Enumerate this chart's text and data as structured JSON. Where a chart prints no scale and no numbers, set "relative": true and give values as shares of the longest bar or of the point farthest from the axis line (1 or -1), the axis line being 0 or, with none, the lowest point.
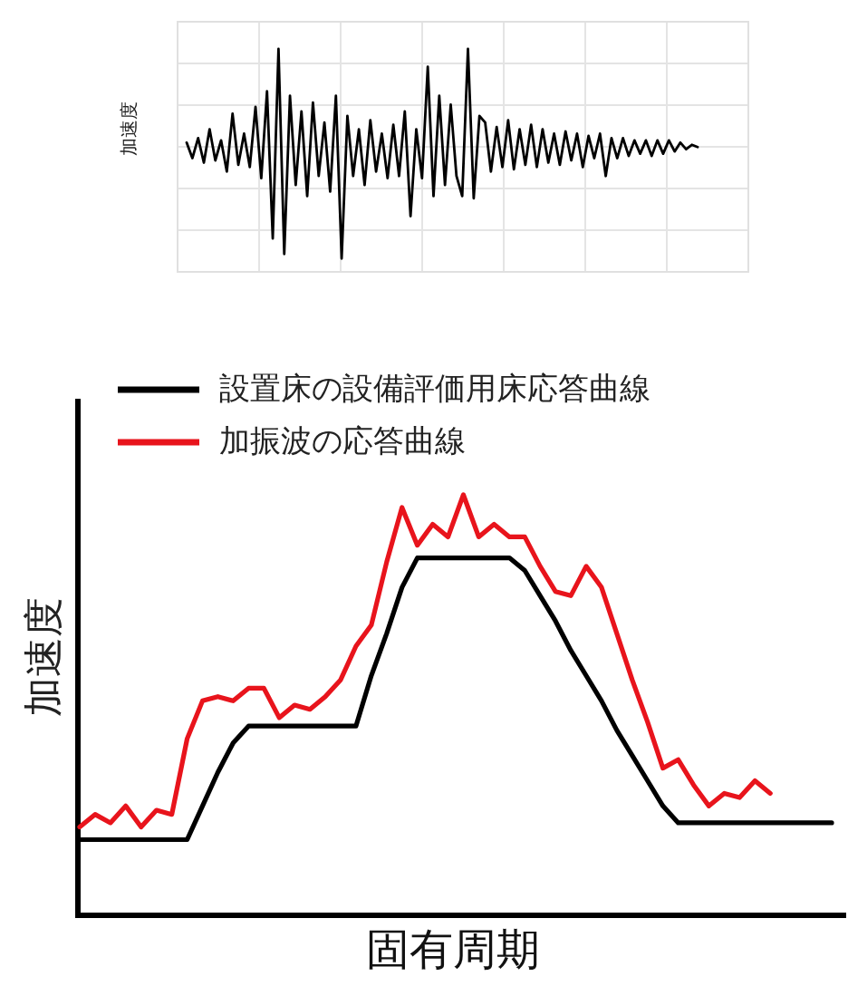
{
  "chart_data": [
    {
      "type": "line",
      "relative": true,
      "ylabel": "加速度",
      "grid": true,
      "color": "#000000",
      "categories": [
        null,
        null,
        null,
        null,
        null,
        null,
        null,
        null,
        null,
        null,
        null,
        null,
        null,
        null,
        null,
        null,
        null,
        null,
        null,
        null,
        null,
        null,
        null,
        null,
        null,
        null,
        null,
        null,
        null,
        null,
        null,
        null,
        null,
        null,
        null,
        null,
        null,
        null,
        null,
        null,
        null,
        null,
        null,
        null,
        null,
        null,
        null,
        null,
        null,
        null,
        null,
        null,
        null,
        null,
        null,
        null,
        null,
        null,
        null,
        null,
        null,
        null,
        null,
        null,
        null,
        null,
        null,
        null,
        null,
        null,
        null,
        null,
        null,
        null,
        null,
        null,
        null,
        null,
        null,
        null,
        null,
        null,
        null,
        null,
        null,
        null,
        null,
        null,
        null,
        null
      ],
      "values": [
        0.58,
        0.51,
        0.6,
        0.49,
        0.64,
        0.5,
        0.59,
        0.45,
        0.71,
        0.48,
        0.62,
        0.47,
        0.74,
        0.42,
        0.81,
        0.15,
        1.0,
        0.08,
        0.79,
        0.39,
        0.72,
        0.34,
        0.76,
        0.43,
        0.67,
        0.36,
        0.79,
        0.06,
        0.7,
        0.43,
        0.64,
        0.39,
        0.68,
        0.45,
        0.62,
        0.42,
        0.66,
        0.43,
        0.72,
        0.25,
        0.64,
        0.42,
        0.92,
        0.34,
        0.79,
        0.39,
        0.75,
        0.43,
        0.34,
        1.0,
        0.33,
        0.7,
        0.67,
        0.45,
        0.65,
        0.47,
        0.68,
        0.46,
        0.64,
        0.48,
        0.66,
        0.47,
        0.64,
        0.49,
        0.62,
        0.48,
        0.63,
        0.5,
        0.62,
        0.47,
        0.61,
        0.51,
        0.62,
        0.43,
        0.6,
        0.51,
        0.6,
        0.52,
        0.59,
        0.53,
        0.59,
        0.52,
        0.59,
        0.53,
        0.59,
        0.54,
        0.58,
        0.55,
        0.57,
        0.56
      ]
    },
    {
      "type": "line",
      "relative": true,
      "xlabel": "固有周期",
      "ylabel": "加速度",
      "legend": "top left",
      "categories": [
        null,
        null,
        null,
        null,
        null,
        null,
        null,
        null,
        null,
        null,
        null,
        null,
        null,
        null,
        null,
        null,
        null,
        null,
        null,
        null,
        null,
        null,
        null,
        null,
        null,
        null,
        null,
        null,
        null,
        null,
        null,
        null,
        null,
        null,
        null,
        null,
        null,
        null,
        null,
        null,
        null,
        null,
        null,
        null,
        null,
        null,
        null,
        null,
        null,
        null
      ],
      "series": [
        {
          "name": "設置床の設備評価用床応答曲線",
          "color": "#000000",
          "values": [
            0.18,
            0.18,
            0.18,
            0.18,
            0.18,
            0.18,
            0.18,
            0.18,
            0.26,
            0.34,
            0.41,
            0.45,
            0.45,
            0.45,
            0.45,
            0.45,
            0.45,
            0.45,
            0.45,
            0.57,
            0.67,
            0.78,
            0.85,
            0.85,
            0.85,
            0.85,
            0.85,
            0.85,
            0.85,
            0.82,
            0.76,
            0.7,
            0.63,
            0.57,
            0.51,
            0.44,
            0.38,
            0.32,
            0.26,
            0.22,
            0.22,
            0.22,
            0.22,
            0.22,
            0.22,
            0.22,
            0.22,
            0.22,
            0.22,
            0.22
          ]
        },
        {
          "name": "加振波の応答曲線",
          "color": "#e8141c",
          "values": [
            0.21,
            0.24,
            0.22,
            0.26,
            0.21,
            0.25,
            0.24,
            0.42,
            0.51,
            0.52,
            0.51,
            0.54,
            0.54,
            0.47,
            0.5,
            0.49,
            0.52,
            0.56,
            0.64,
            0.69,
            0.84,
            0.97,
            0.88,
            0.93,
            0.9,
            1.0,
            0.9,
            0.93,
            0.9,
            0.9,
            0.83,
            0.77,
            0.76,
            0.83,
            0.78,
            0.67,
            0.56,
            0.46,
            0.35,
            0.37,
            0.31,
            0.26,
            0.29,
            0.28,
            0.32,
            0.29,
            null,
            null,
            null,
            null
          ]
        }
      ]
    }
  ]
}
